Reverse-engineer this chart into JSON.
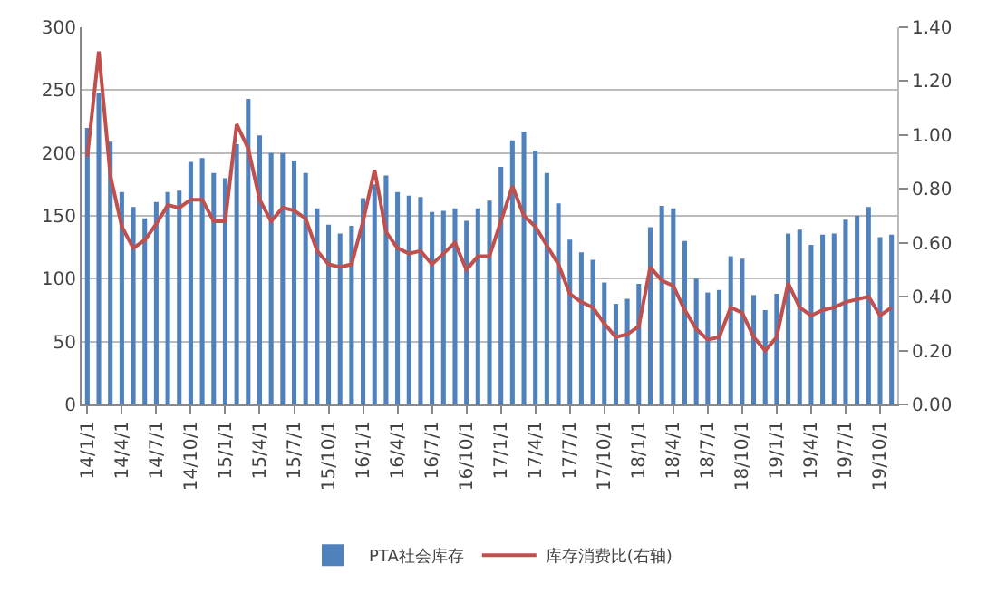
{
  "chart_data": {
    "type": "bar",
    "categories": [
      "14/1/1",
      null,
      null,
      "14/4/1",
      null,
      null,
      "14/7/1",
      null,
      null,
      "14/10/1",
      null,
      null,
      "15/1/1",
      null,
      null,
      "15/4/1",
      null,
      null,
      "15/7/1",
      null,
      null,
      "15/10/1",
      null,
      null,
      "16/1/1",
      null,
      null,
      "16/4/1",
      null,
      null,
      "16/7/1",
      null,
      null,
      "16/10/1",
      null,
      null,
      "17/1/1",
      null,
      null,
      "17/4/1",
      null,
      null,
      "17/7/1",
      null,
      null,
      "17/10/1",
      null,
      null,
      "18/1/1",
      null,
      null,
      "18/4/1",
      null,
      null,
      "18/7/1",
      null,
      null,
      "18/10/1",
      null,
      null,
      "19/1/1",
      null,
      null,
      "19/4/1",
      null,
      null,
      "19/7/1",
      null,
      null,
      "19/10/1",
      null
    ],
    "series": [
      {
        "name": "PTA社会库存",
        "color": "#4f81bd",
        "values": [
          220,
          248,
          209,
          169,
          157,
          148,
          161,
          169,
          170,
          193,
          196,
          184,
          180,
          207,
          243,
          214,
          200,
          200,
          194,
          184,
          156,
          143,
          136,
          142,
          164,
          175,
          182,
          169,
          166,
          165,
          153,
          154,
          156,
          146,
          156,
          162,
          189,
          210,
          217,
          202,
          184,
          160,
          131,
          121,
          115,
          97,
          80,
          84,
          96,
          141,
          158,
          156,
          130,
          100,
          89,
          91,
          118,
          116,
          87,
          75,
          88,
          136,
          139,
          127,
          135,
          136,
          147,
          150,
          157,
          133,
          135
        ]
      },
      {
        "name": "库存消费比(右轴)",
        "type": "line",
        "axis": "y2",
        "color": "#c0504d",
        "values": [
          0.92,
          1.31,
          0.85,
          0.66,
          0.58,
          0.61,
          0.67,
          0.74,
          0.73,
          0.76,
          0.76,
          0.68,
          0.68,
          1.04,
          0.95,
          0.76,
          0.68,
          0.73,
          0.72,
          0.69,
          0.57,
          0.52,
          0.51,
          0.52,
          0.68,
          0.87,
          0.64,
          0.58,
          0.56,
          0.57,
          0.52,
          0.56,
          0.6,
          0.5,
          0.55,
          0.55,
          0.68,
          0.81,
          0.7,
          0.66,
          0.59,
          0.52,
          0.41,
          0.38,
          0.36,
          0.3,
          0.25,
          0.26,
          0.29,
          0.51,
          0.46,
          0.44,
          0.35,
          0.28,
          0.24,
          0.25,
          0.36,
          0.34,
          0.25,
          0.2,
          0.25,
          0.45,
          0.36,
          0.33,
          0.35,
          0.36,
          0.38,
          0.39,
          0.4,
          0.33,
          0.36
        ]
      }
    ],
    "ylim": [
      0,
      300
    ],
    "yticks": [
      0,
      50,
      100,
      150,
      200,
      250,
      300
    ],
    "y2lim": [
      0,
      1.4
    ],
    "y2ticks": [
      {
        "value": 0,
        "label": "0.00"
      },
      {
        "value": 0.2,
        "label": "0.20"
      },
      {
        "value": 0.4,
        "label": "0.40"
      },
      {
        "value": 0.6,
        "label": "0.60"
      },
      {
        "value": 0.8,
        "label": "0.80"
      },
      {
        "value": 1,
        "label": "1.00"
      },
      {
        "value": 1.2,
        "label": "1.20"
      },
      {
        "value": 1.4,
        "label": "1.40"
      }
    ],
    "grid": "y",
    "legend": "bottom",
    "marker": "none",
    "line_style": "solid"
  }
}
